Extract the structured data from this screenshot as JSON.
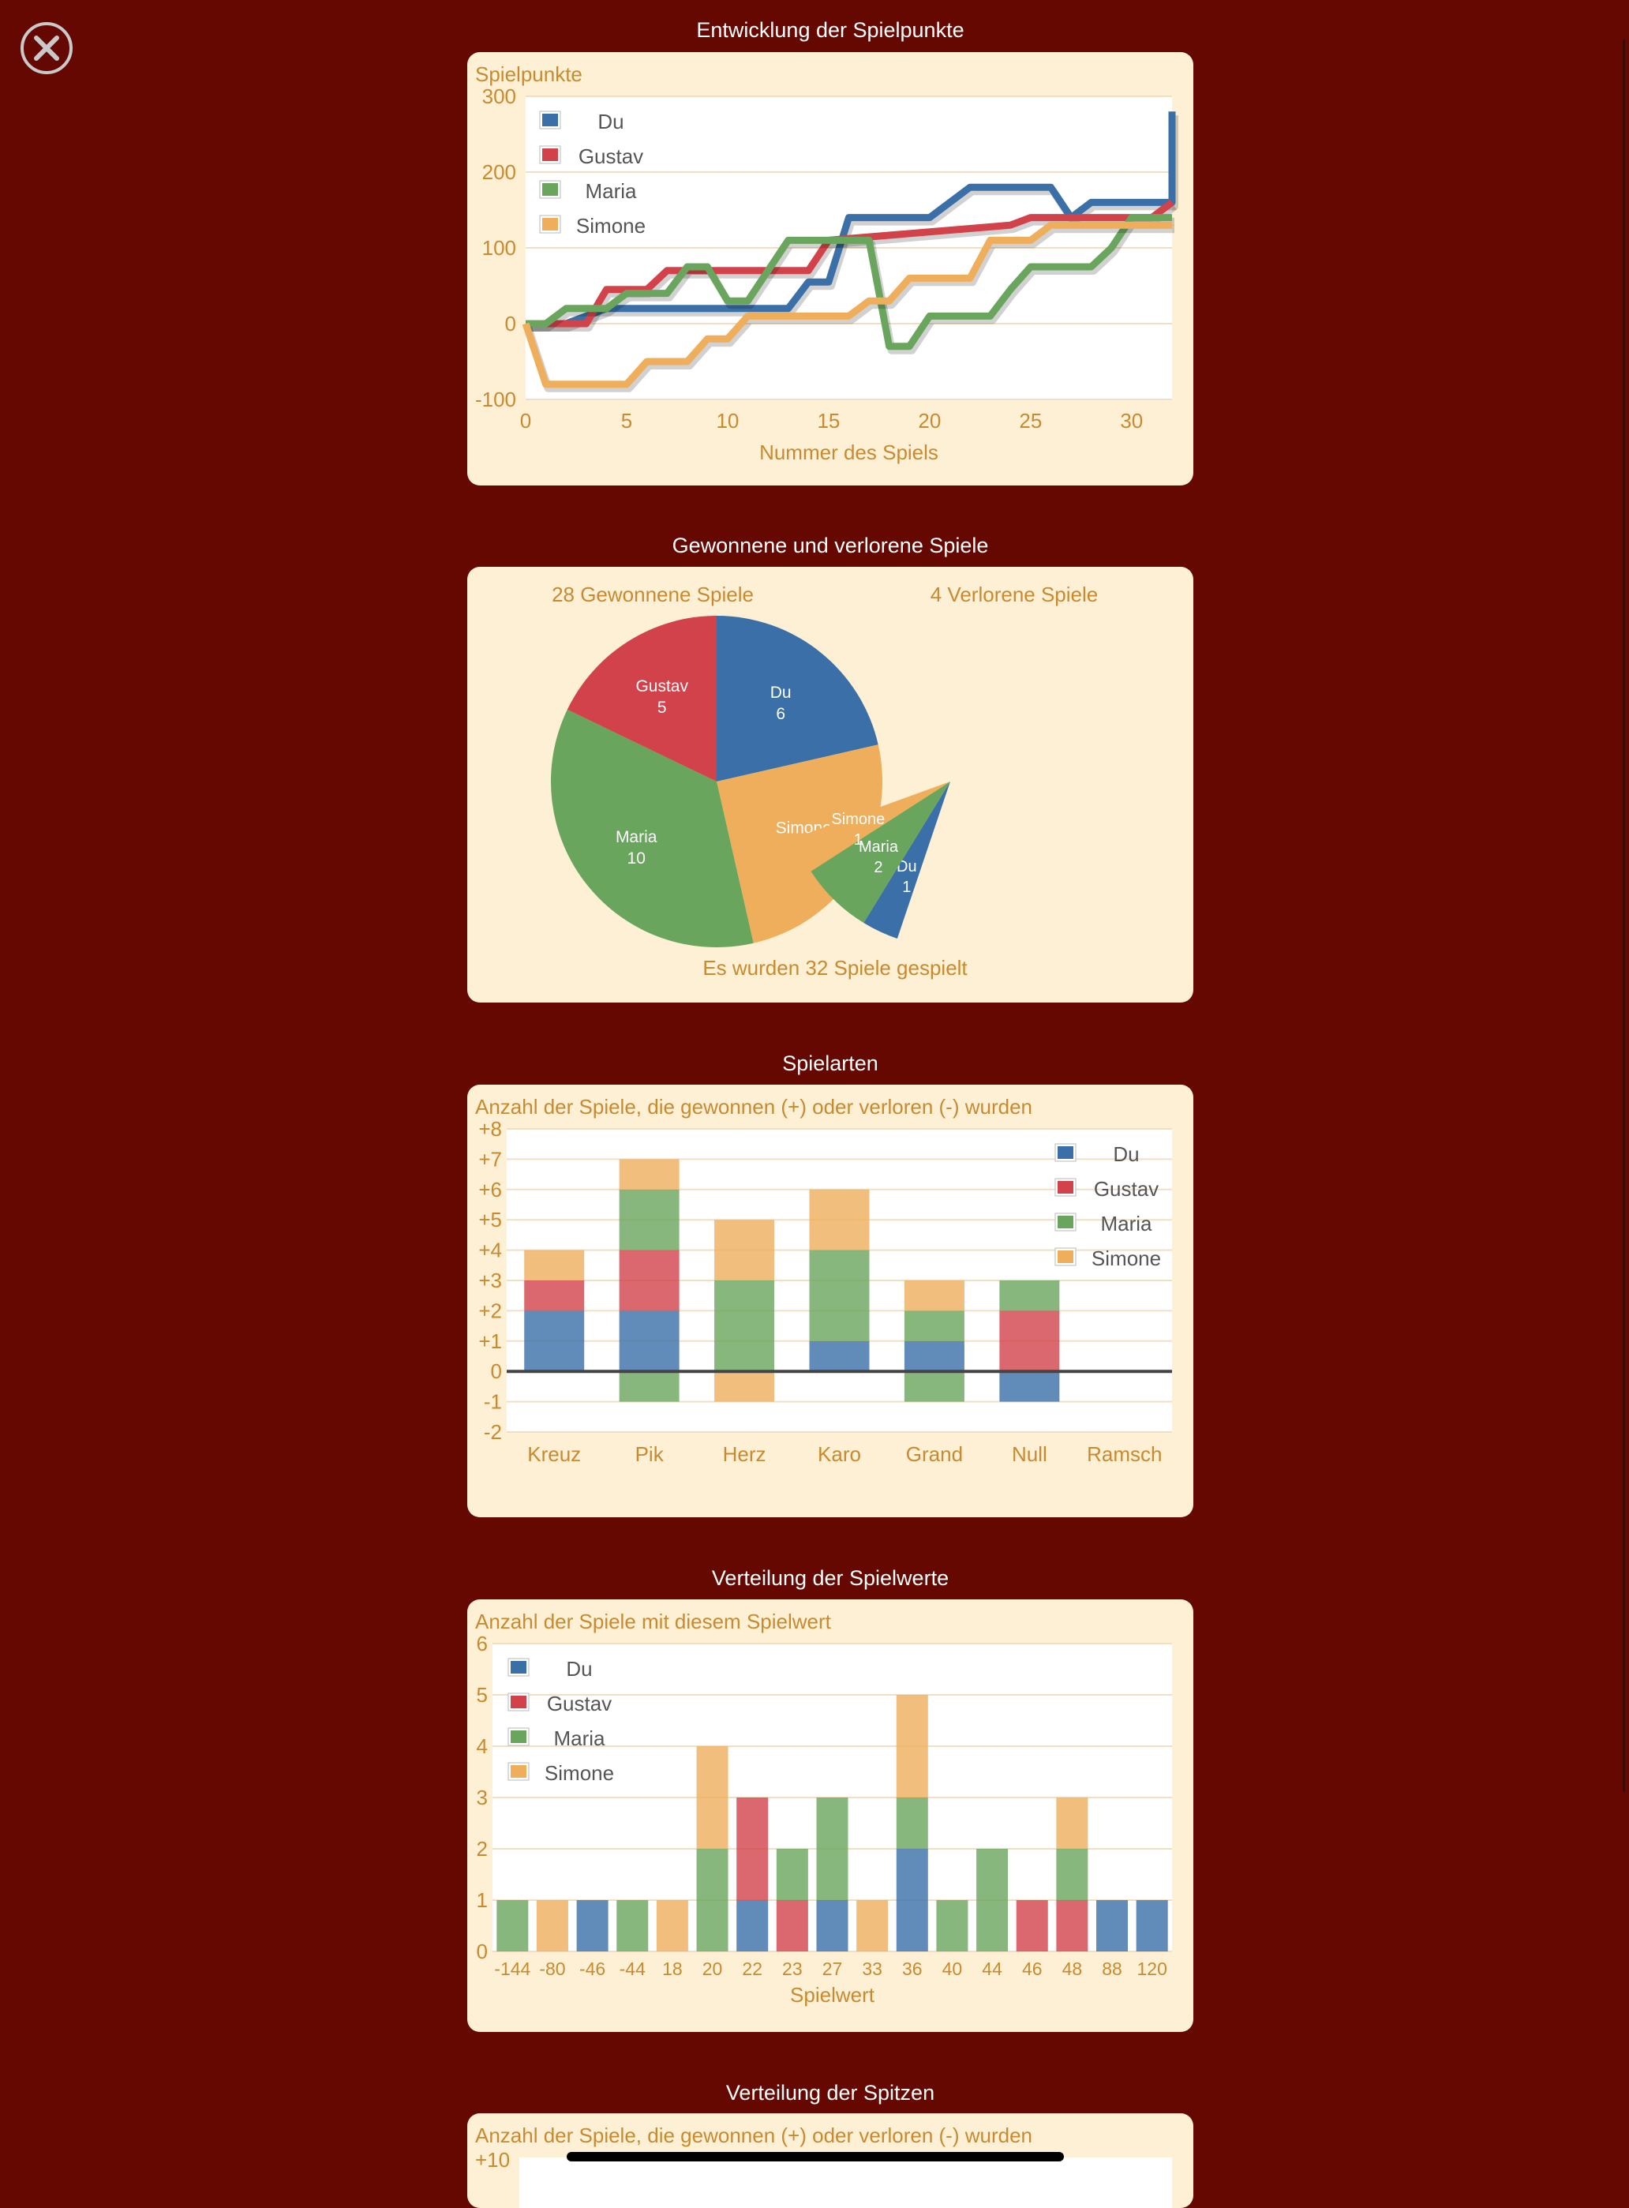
{
  "close_icon": "close-icon",
  "colors": {
    "background": "#650801",
    "card": "#fdf0d5",
    "plot": "#ffffff",
    "label": "#c98a2f",
    "Du": "#3a6fa8",
    "Gustav": "#d1424a",
    "Maria": "#69a55c",
    "Simone": "#efae5c"
  },
  "sections": {
    "points": {
      "title": "Entwicklung der Spielpunkte"
    },
    "wonlost": {
      "title": "Gewonnene und verlorene Spiele"
    },
    "types": {
      "title": "Spielarten"
    },
    "values": {
      "title": "Verteilung der Spielwerte"
    },
    "spitzen": {
      "title": "Verteilung der Spitzen",
      "subtitle": "Anzahl der Spiele, die gewonnen (+) oder verloren (-) wurden",
      "first_tick": "+10"
    }
  },
  "chart_data": [
    {
      "type": "line",
      "subtitle": "Spielpunkte",
      "xlabel": "Nummer des Spiels",
      "xlim": [
        0,
        32
      ],
      "ylim": [
        -100,
        300
      ],
      "xticks": [
        0,
        5,
        10,
        15,
        20,
        25,
        30
      ],
      "yticks": [
        -100,
        0,
        100,
        200,
        300
      ],
      "legend": "top-left",
      "grid": true,
      "series": [
        {
          "name": "Du",
          "points": [
            [
              0,
              0
            ],
            [
              1,
              0
            ],
            [
              2,
              0
            ],
            [
              3,
              10
            ],
            [
              4,
              20
            ],
            [
              12,
              20
            ],
            [
              13,
              20
            ],
            [
              14,
              55
            ],
            [
              15,
              55
            ],
            [
              16,
              140
            ],
            [
              20,
              140
            ],
            [
              22,
              180
            ],
            [
              26,
              180
            ],
            [
              27,
              140
            ],
            [
              28,
              160
            ],
            [
              32,
              160
            ],
            [
              32,
              280
            ]
          ]
        },
        {
          "name": "Gustav",
          "points": [
            [
              0,
              0
            ],
            [
              1,
              0
            ],
            [
              3,
              0
            ],
            [
              4,
              45
            ],
            [
              6,
              45
            ],
            [
              7,
              70
            ],
            [
              14,
              70
            ],
            [
              15,
              110
            ],
            [
              24,
              130
            ],
            [
              25,
              140
            ],
            [
              31,
              140
            ],
            [
              32,
              160
            ]
          ]
        },
        {
          "name": "Maria",
          "points": [
            [
              0,
              0
            ],
            [
              1,
              0
            ],
            [
              2,
              20
            ],
            [
              4,
              20
            ],
            [
              5,
              40
            ],
            [
              7,
              40
            ],
            [
              8,
              75
            ],
            [
              9,
              75
            ],
            [
              10,
              30
            ],
            [
              11,
              30
            ],
            [
              12,
              70
            ],
            [
              13,
              110
            ],
            [
              17,
              110
            ],
            [
              18,
              -30
            ],
            [
              19,
              -30
            ],
            [
              20,
              10
            ],
            [
              23,
              10
            ],
            [
              24,
              45
            ],
            [
              25,
              75
            ],
            [
              28,
              75
            ],
            [
              29,
              100
            ],
            [
              30,
              140
            ],
            [
              32,
              140
            ]
          ]
        },
        {
          "name": "Simone",
          "points": [
            [
              0,
              0
            ],
            [
              1,
              -80
            ],
            [
              5,
              -80
            ],
            [
              6,
              -50
            ],
            [
              8,
              -50
            ],
            [
              9,
              -20
            ],
            [
              10,
              -20
            ],
            [
              11,
              10
            ],
            [
              16,
              10
            ],
            [
              17,
              30
            ],
            [
              18,
              30
            ],
            [
              19,
              60
            ],
            [
              22,
              60
            ],
            [
              23,
              110
            ],
            [
              25,
              110
            ],
            [
              26,
              130
            ],
            [
              32,
              130
            ]
          ]
        }
      ]
    },
    {
      "type": "pie",
      "title": "28 Gewonnene Spiele",
      "slices": [
        {
          "name": "Du",
          "value": 6
        },
        {
          "name": "Simone",
          "value": 7
        },
        {
          "name": "Maria",
          "value": 10
        },
        {
          "name": "Gustav",
          "value": 5
        }
      ]
    },
    {
      "type": "pie",
      "title": "4 Verlorene Spiele",
      "slices": [
        {
          "name": "Du",
          "value": 1
        },
        {
          "name": "Maria",
          "value": 2
        },
        {
          "name": "Simone",
          "value": 1
        }
      ]
    },
    {
      "type": "bar",
      "subtitle": "Anzahl der Spiele, die gewonnen (+) oder verloren (-) wurden",
      "categories": [
        "Kreuz",
        "Pik",
        "Herz",
        "Karo",
        "Grand",
        "Null",
        "Ramsch"
      ],
      "ylim": [
        -2,
        8
      ],
      "ytick_labels": [
        "+8",
        "+7",
        "+6",
        "+5",
        "+4",
        "+3",
        "+2",
        "+1",
        "0",
        "-1",
        "-2"
      ],
      "stacked": true,
      "legend": "top-right",
      "series": [
        {
          "name": "Du",
          "values": [
            2,
            2,
            0,
            1,
            1,
            -1,
            0
          ]
        },
        {
          "name": "Gustav",
          "values": [
            1,
            2,
            0,
            0,
            0,
            2,
            0
          ]
        },
        {
          "name": "Maria",
          "values": [
            0,
            2,
            3,
            3,
            1,
            1,
            0
          ]
        },
        {
          "name": "Simone",
          "values": [
            1,
            1,
            2,
            2,
            1,
            0,
            0
          ]
        },
        {
          "name": "Maria",
          "values": [
            0,
            -1,
            0,
            0,
            -1,
            0,
            0
          ],
          "negative": true
        },
        {
          "name": "Simone",
          "values": [
            0,
            0,
            -1,
            0,
            0,
            0,
            0
          ],
          "negative": true
        }
      ]
    },
    {
      "type": "bar",
      "subtitle": "Anzahl der Spiele mit diesem Spielwert",
      "xlabel": "Spielwert",
      "categories": [
        "-144",
        "-80",
        "-46",
        "-44",
        "18",
        "20",
        "22",
        "23",
        "27",
        "33",
        "36",
        "40",
        "44",
        "46",
        "48",
        "88",
        "120"
      ],
      "ylim": [
        0,
        6
      ],
      "yticks": [
        0,
        1,
        2,
        3,
        4,
        5,
        6
      ],
      "stacked": true,
      "legend": "top-left",
      "series": [
        {
          "name": "Du",
          "values": [
            0,
            0,
            1,
            0,
            0,
            0,
            1,
            0,
            1,
            0,
            2,
            0,
            0,
            0,
            0,
            1,
            1
          ]
        },
        {
          "name": "Gustav",
          "values": [
            0,
            0,
            0,
            0,
            0,
            0,
            2,
            1,
            0,
            0,
            0,
            0,
            0,
            1,
            1,
            0,
            0
          ]
        },
        {
          "name": "Maria",
          "values": [
            1,
            0,
            0,
            1,
            0,
            2,
            0,
            1,
            2,
            0,
            1,
            1,
            2,
            0,
            1,
            0,
            0
          ]
        },
        {
          "name": "Simone",
          "values": [
            0,
            1,
            0,
            0,
            1,
            2,
            0,
            0,
            0,
            1,
            2,
            0,
            0,
            0,
            1,
            0,
            0
          ]
        }
      ]
    }
  ],
  "pie_footer": "Es wurden 32 Spiele gespielt"
}
